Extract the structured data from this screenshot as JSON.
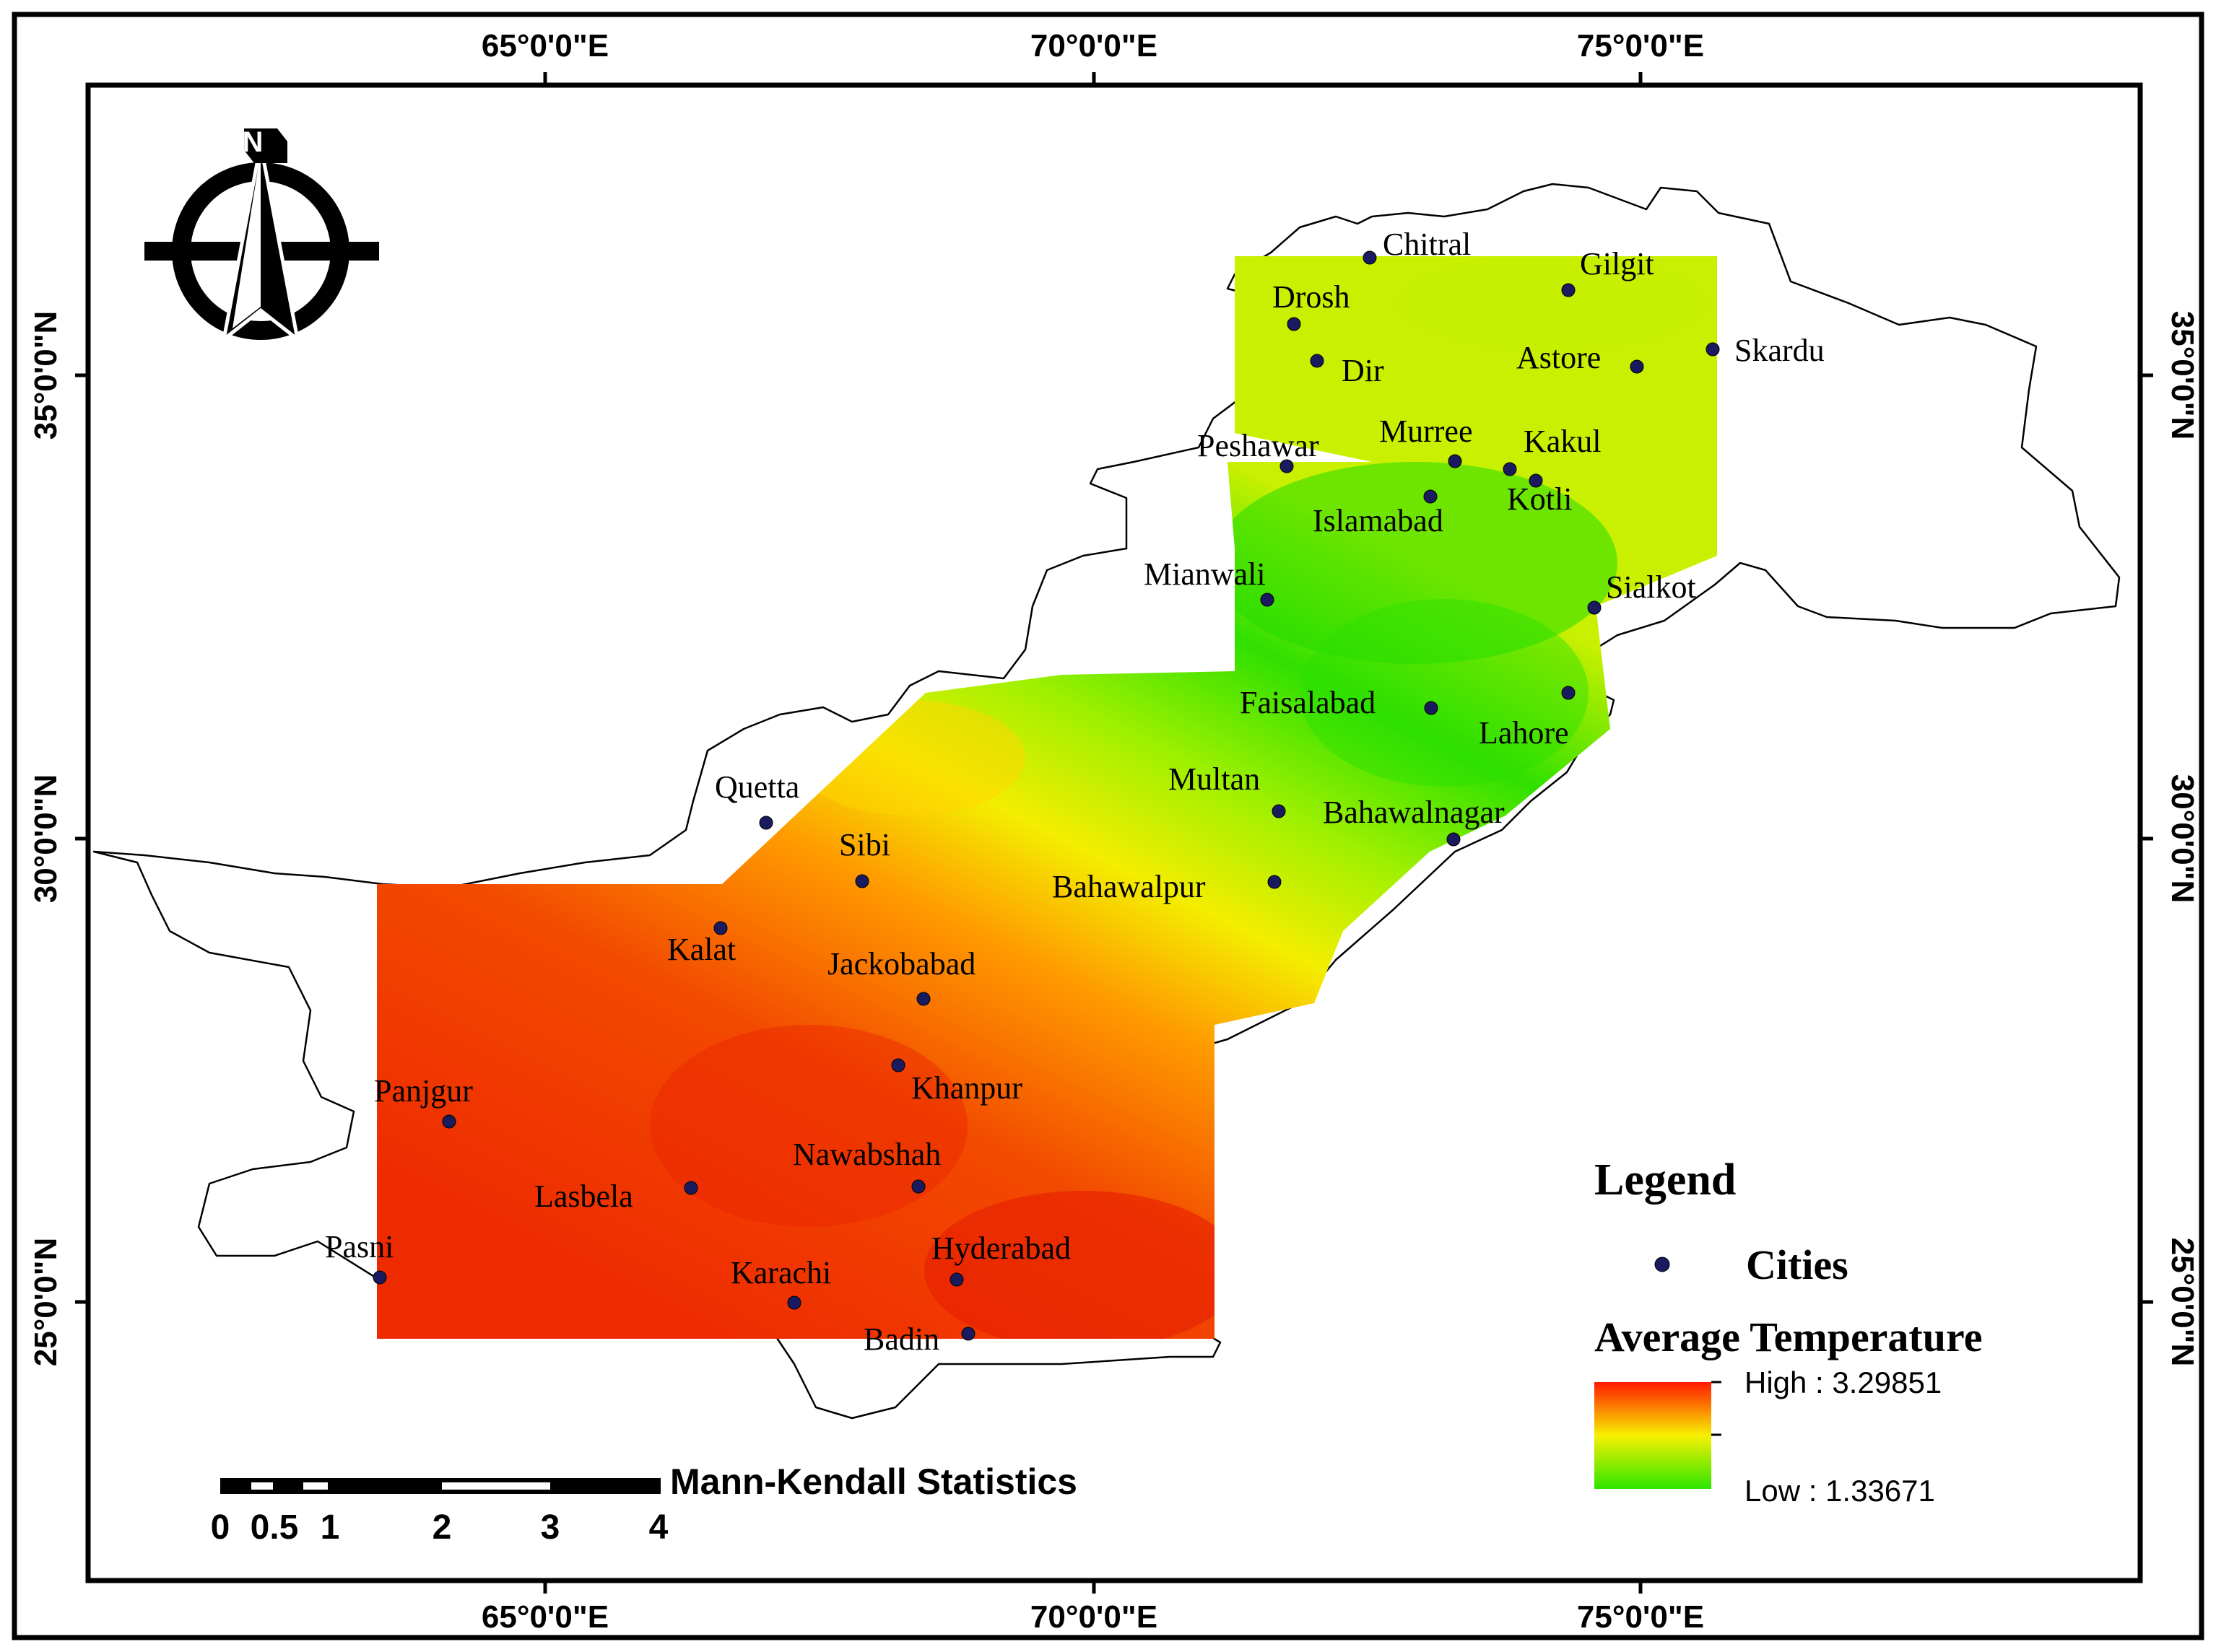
{
  "map": {
    "top_longitude_labels": [
      "65°0'0\"E",
      "70°0'0\"E",
      "75°0'0\"E"
    ],
    "bottom_longitude_labels": [
      "65°0'0\"E",
      "70°0'0\"E",
      "75°0'0\"E"
    ],
    "left_latitude_labels": [
      "35°0'0\"N",
      "30°0'0\"N",
      "25°0'0\"N"
    ],
    "right_latitude_labels": [
      "35°0'0\"N",
      "30°0'0\"N",
      "25°0'0\"N"
    ],
    "north_arrow_letter": "N",
    "north_arrow_icon": "compass-north-arrow-icon"
  },
  "cities": [
    {
      "name": "Chitral"
    },
    {
      "name": "Gilgit"
    },
    {
      "name": "Drosh"
    },
    {
      "name": "Skardu"
    },
    {
      "name": "Dir"
    },
    {
      "name": "Astore"
    },
    {
      "name": "Peshawar"
    },
    {
      "name": "Murree"
    },
    {
      "name": "Kakul"
    },
    {
      "name": "Kotli"
    },
    {
      "name": "Islamabad"
    },
    {
      "name": "Mianwali"
    },
    {
      "name": "Sialkot"
    },
    {
      "name": "Faisalabad"
    },
    {
      "name": "Lahore"
    },
    {
      "name": "Multan"
    },
    {
      "name": "Bahawalnagar"
    },
    {
      "name": "Quetta"
    },
    {
      "name": "Sibi"
    },
    {
      "name": "Bahawalpur"
    },
    {
      "name": "Kalat"
    },
    {
      "name": "Jackobabad"
    },
    {
      "name": "Khanpur"
    },
    {
      "name": "Panjgur"
    },
    {
      "name": "Nawabshah"
    },
    {
      "name": "Lasbela"
    },
    {
      "name": "Pasni"
    },
    {
      "name": "Hyderabad"
    },
    {
      "name": "Karachi"
    },
    {
      "name": "Badin"
    }
  ],
  "legend": {
    "title": "Legend",
    "cities_label": "Cities",
    "temperature_title": "Average Temperature",
    "high_label": "High : 3.29851",
    "low_label": "Low : 1.33671",
    "colors": {
      "high": "#ff1a00",
      "mid": "#f7f000",
      "low": "#2ee600"
    }
  },
  "scale_bar": {
    "title": "Mann-Kendall Statistics",
    "ticks": [
      "0",
      "0.5",
      "1",
      "2",
      "3",
      "4"
    ]
  }
}
